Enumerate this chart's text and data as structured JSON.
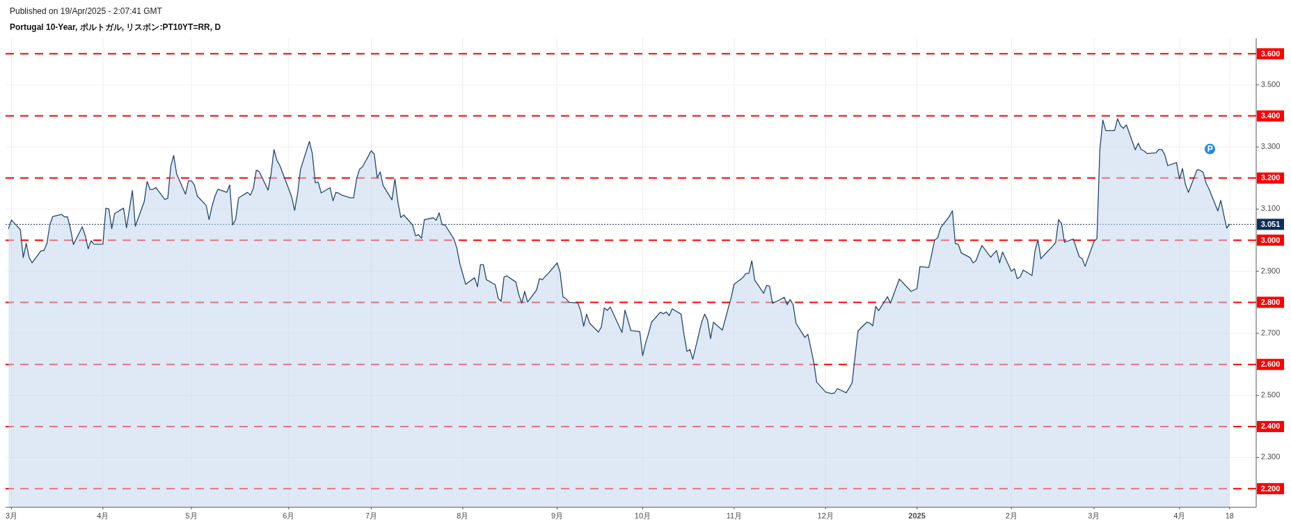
{
  "chart_data": {
    "type": "area",
    "title": "Portugal 10-Year, ポルトガル, リスボン:PT10YT=RR, D",
    "annotations": [
      "Published on 19/Apr/2025 - 2:07:41 GMT"
    ],
    "x": [
      "2024-02-29",
      "2024-03-01",
      "2024-03-04",
      "2024-03-05",
      "2024-03-06",
      "2024-03-07",
      "2024-03-08",
      "2024-03-11",
      "2024-03-12",
      "2024-03-13",
      "2024-03-14",
      "2024-03-15",
      "2024-03-18",
      "2024-03-19",
      "2024-03-20",
      "2024-03-21",
      "2024-03-22",
      "2024-03-25",
      "2024-03-26",
      "2024-03-27",
      "2024-03-28",
      "2024-03-29",
      "2024-04-01",
      "2024-04-02",
      "2024-04-03",
      "2024-04-04",
      "2024-04-05",
      "2024-04-08",
      "2024-04-09",
      "2024-04-10",
      "2024-04-11",
      "2024-04-12",
      "2024-04-15",
      "2024-04-16",
      "2024-04-17",
      "2024-04-18",
      "2024-04-19",
      "2024-04-22",
      "2024-04-23",
      "2024-04-24",
      "2024-04-25",
      "2024-04-26",
      "2024-04-29",
      "2024-04-30",
      "2024-05-01",
      "2024-05-02",
      "2024-05-03",
      "2024-05-06",
      "2024-05-07",
      "2024-05-08",
      "2024-05-09",
      "2024-05-10",
      "2024-05-13",
      "2024-05-14",
      "2024-05-15",
      "2024-05-16",
      "2024-05-17",
      "2024-05-20",
      "2024-05-21",
      "2024-05-22",
      "2024-05-23",
      "2024-05-24",
      "2024-05-27",
      "2024-05-28",
      "2024-05-29",
      "2024-05-30",
      "2024-05-31",
      "2024-06-03",
      "2024-06-04",
      "2024-06-05",
      "2024-06-06",
      "2024-06-07",
      "2024-06-10",
      "2024-06-11",
      "2024-06-12",
      "2024-06-13",
      "2024-06-14",
      "2024-06-17",
      "2024-06-18",
      "2024-06-19",
      "2024-06-20",
      "2024-06-21",
      "2024-06-24",
      "2024-06-25",
      "2024-06-26",
      "2024-06-27",
      "2024-06-28",
      "2024-07-01",
      "2024-07-02",
      "2024-07-03",
      "2024-07-04",
      "2024-07-05",
      "2024-07-08",
      "2024-07-09",
      "2024-07-10",
      "2024-07-11",
      "2024-07-12",
      "2024-07-15",
      "2024-07-16",
      "2024-07-17",
      "2024-07-18",
      "2024-07-19",
      "2024-07-22",
      "2024-07-23",
      "2024-07-24",
      "2024-07-25",
      "2024-07-26",
      "2024-07-29",
      "2024-07-30",
      "2024-07-31",
      "2024-08-01",
      "2024-08-02",
      "2024-08-05",
      "2024-08-06",
      "2024-08-07",
      "2024-08-08",
      "2024-08-09",
      "2024-08-12",
      "2024-08-13",
      "2024-08-14",
      "2024-08-15",
      "2024-08-16",
      "2024-08-19",
      "2024-08-20",
      "2024-08-21",
      "2024-08-22",
      "2024-08-23",
      "2024-08-26",
      "2024-08-27",
      "2024-08-28",
      "2024-08-29",
      "2024-08-30",
      "2024-09-02",
      "2024-09-03",
      "2024-09-04",
      "2024-09-05",
      "2024-09-06",
      "2024-09-09",
      "2024-09-10",
      "2024-09-11",
      "2024-09-12",
      "2024-09-13",
      "2024-09-16",
      "2024-09-17",
      "2024-09-18",
      "2024-09-19",
      "2024-09-20",
      "2024-09-23",
      "2024-09-24",
      "2024-09-25",
      "2024-09-26",
      "2024-09-27",
      "2024-09-30",
      "2024-10-01",
      "2024-10-02",
      "2024-10-03",
      "2024-10-04",
      "2024-10-07",
      "2024-10-08",
      "2024-10-09",
      "2024-10-10",
      "2024-10-11",
      "2024-10-14",
      "2024-10-15",
      "2024-10-16",
      "2024-10-17",
      "2024-10-18",
      "2024-10-21",
      "2024-10-22",
      "2024-10-23",
      "2024-10-24",
      "2024-10-25",
      "2024-10-28",
      "2024-10-29",
      "2024-10-30",
      "2024-10-31",
      "2024-11-01",
      "2024-11-04",
      "2024-11-05",
      "2024-11-06",
      "2024-11-07",
      "2024-11-08",
      "2024-11-11",
      "2024-11-12",
      "2024-11-13",
      "2024-11-14",
      "2024-11-15",
      "2024-11-18",
      "2024-11-19",
      "2024-11-20",
      "2024-11-21",
      "2024-11-22",
      "2024-11-25",
      "2024-11-26",
      "2024-11-27",
      "2024-11-28",
      "2024-11-29",
      "2024-12-02",
      "2024-12-03",
      "2024-12-04",
      "2024-12-05",
      "2024-12-06",
      "2024-12-09",
      "2024-12-10",
      "2024-12-11",
      "2024-12-12",
      "2024-12-13",
      "2024-12-16",
      "2024-12-17",
      "2024-12-18",
      "2024-12-19",
      "2024-12-20",
      "2024-12-23",
      "2024-12-24",
      "2024-12-27",
      "2024-12-30",
      "2024-12-31",
      "2025-01-02",
      "2025-01-03",
      "2025-01-06",
      "2025-01-07",
      "2025-01-08",
      "2025-01-09",
      "2025-01-10",
      "2025-01-13",
      "2025-01-14",
      "2025-01-15",
      "2025-01-16",
      "2025-01-17",
      "2025-01-20",
      "2025-01-21",
      "2025-01-22",
      "2025-01-23",
      "2025-01-24",
      "2025-01-27",
      "2025-01-28",
      "2025-01-29",
      "2025-01-30",
      "2025-01-31",
      "2025-02-03",
      "2025-02-04",
      "2025-02-05",
      "2025-02-06",
      "2025-02-07",
      "2025-02-10",
      "2025-02-11",
      "2025-02-12",
      "2025-02-13",
      "2025-02-14",
      "2025-02-17",
      "2025-02-18",
      "2025-02-19",
      "2025-02-20",
      "2025-02-21",
      "2025-02-24",
      "2025-02-25",
      "2025-02-26",
      "2025-02-27",
      "2025-02-28",
      "2025-03-03",
      "2025-03-04",
      "2025-03-05",
      "2025-03-06",
      "2025-03-07",
      "2025-03-10",
      "2025-03-11",
      "2025-03-12",
      "2025-03-13",
      "2025-03-14",
      "2025-03-17",
      "2025-03-18",
      "2025-03-19",
      "2025-03-20",
      "2025-03-21",
      "2025-03-24",
      "2025-03-25",
      "2025-03-26",
      "2025-03-27",
      "2025-03-28",
      "2025-03-31",
      "2025-04-01",
      "2025-04-02",
      "2025-04-03",
      "2025-04-04",
      "2025-04-07",
      "2025-04-08",
      "2025-04-09",
      "2025-04-10",
      "2025-04-11",
      "2025-04-14",
      "2025-04-15",
      "2025-04-16",
      "2025-04-17",
      "2025-04-18"
    ],
    "series": [
      {
        "color": "#21476f",
        "values": [
          3.037,
          3.065,
          3.034,
          2.944,
          2.99,
          2.944,
          2.927,
          2.966,
          2.966,
          2.989,
          3.049,
          3.076,
          3.083,
          3.075,
          3.075,
          3.037,
          2.986,
          3.043,
          3.015,
          2.972,
          2.998,
          2.987,
          2.987,
          3.103,
          3.101,
          3.037,
          3.086,
          3.103,
          3.04,
          3.1,
          3.16,
          3.045,
          3.124,
          3.189,
          3.163,
          3.164,
          3.169,
          3.131,
          3.135,
          3.237,
          3.273,
          3.213,
          3.148,
          3.191,
          3.191,
          3.178,
          3.142,
          3.112,
          3.066,
          3.109,
          3.142,
          3.164,
          3.154,
          3.178,
          3.049,
          3.067,
          3.136,
          3.154,
          3.145,
          3.167,
          3.225,
          3.221,
          3.161,
          3.213,
          3.292,
          3.257,
          3.24,
          3.165,
          3.139,
          3.096,
          3.15,
          3.228,
          3.318,
          3.279,
          3.185,
          3.187,
          3.152,
          3.169,
          3.127,
          3.154,
          3.151,
          3.145,
          3.136,
          3.136,
          3.197,
          3.228,
          3.236,
          3.288,
          3.277,
          3.201,
          3.22,
          3.176,
          3.13,
          3.197,
          3.124,
          3.073,
          3.081,
          3.049,
          3.014,
          3.018,
          3.006,
          3.066,
          3.072,
          3.064,
          3.088,
          3.05,
          3.049,
          3.004,
          2.974,
          2.925,
          2.891,
          2.858,
          2.879,
          2.85,
          2.921,
          2.921,
          2.873,
          2.857,
          2.813,
          2.803,
          2.882,
          2.885,
          2.865,
          2.825,
          2.797,
          2.835,
          2.801,
          2.839,
          2.876,
          2.873,
          2.884,
          2.893,
          2.927,
          2.897,
          2.817,
          2.812,
          2.8,
          2.798,
          2.772,
          2.723,
          2.762,
          2.733,
          2.704,
          2.721,
          2.782,
          2.774,
          2.785,
          2.723,
          2.703,
          2.775,
          2.742,
          2.709,
          2.706,
          2.628,
          2.669,
          2.7,
          2.736,
          2.768,
          2.763,
          2.769,
          2.757,
          2.779,
          2.762,
          2.697,
          2.642,
          2.648,
          2.617,
          2.736,
          2.762,
          2.743,
          2.683,
          2.736,
          2.71,
          2.745,
          2.781,
          2.815,
          2.858,
          2.88,
          2.893,
          2.893,
          2.934,
          2.871,
          2.829,
          2.854,
          2.852,
          2.797,
          2.801,
          2.816,
          2.792,
          2.809,
          2.792,
          2.732,
          2.687,
          2.697,
          2.653,
          2.607,
          2.543,
          2.511,
          2.509,
          2.506,
          2.508,
          2.522,
          2.509,
          2.524,
          2.541,
          2.625,
          2.708,
          2.736,
          2.733,
          2.724,
          2.787,
          2.773,
          2.818,
          2.797,
          2.875,
          2.845,
          2.835,
          2.844,
          2.915,
          2.912,
          2.955,
          3.001,
          3.007,
          3.04,
          3.077,
          3.095,
          2.989,
          2.987,
          2.959,
          2.944,
          2.927,
          2.934,
          2.959,
          2.983,
          2.945,
          2.957,
          2.966,
          2.927,
          2.962,
          2.9,
          2.908,
          2.876,
          2.882,
          2.904,
          2.886,
          2.965,
          3.002,
          2.94,
          2.951,
          2.981,
          2.992,
          3.066,
          3.054,
          2.993,
          3.004,
          2.975,
          2.947,
          2.94,
          2.916,
          2.996,
          3.005,
          3.292,
          3.387,
          3.353,
          3.353,
          3.391,
          3.369,
          3.36,
          3.371,
          3.291,
          3.312,
          3.292,
          3.287,
          3.279,
          3.281,
          3.292,
          3.292,
          3.275,
          3.24,
          3.25,
          3.197,
          3.231,
          3.18,
          3.154,
          3.227,
          3.225,
          3.219,
          3.184,
          3.165,
          3.094,
          3.128,
          3.082,
          3.039,
          3.051
        ]
      }
    ],
    "xlim": [
      "2024-02-28",
      "2025-04-27"
    ],
    "ylim": [
      2.14,
      3.65
    ],
    "xticks": [
      {
        "value": "2024-03-01",
        "label": "3月"
      },
      {
        "value": "2024-04-01",
        "label": "4月"
      },
      {
        "value": "2024-05-01",
        "label": "5月"
      },
      {
        "value": "2024-06-03",
        "label": "6月"
      },
      {
        "value": "2024-07-01",
        "label": "7月"
      },
      {
        "value": "2024-08-01",
        "label": "8月"
      },
      {
        "value": "2024-09-02",
        "label": "9月"
      },
      {
        "value": "2024-10-01",
        "label": "10月"
      },
      {
        "value": "2024-11-01",
        "label": "11月"
      },
      {
        "value": "2024-12-02",
        "label": "12月"
      },
      {
        "value": "2025-01-02",
        "label": "2025"
      },
      {
        "value": "2025-02-03",
        "label": "2月"
      },
      {
        "value": "2025-03-03",
        "label": "3月"
      },
      {
        "value": "2025-04-01",
        "label": "4月"
      },
      {
        "value": "2025-04-18",
        "label": "18"
      }
    ],
    "yticks": [
      {
        "value": 2.3,
        "label": "2.300"
      },
      {
        "value": 2.5,
        "label": "2.500"
      },
      {
        "value": 2.7,
        "label": "2.700"
      },
      {
        "value": 2.9,
        "label": "2.900"
      },
      {
        "value": 3.1,
        "label": "3.100"
      },
      {
        "value": 3.3,
        "label": "3.300"
      },
      {
        "value": 3.5,
        "label": "3.500"
      }
    ],
    "grid": true,
    "ref_lines": [
      {
        "axis": "y",
        "value": 3.6,
        "label": "3.600",
        "color": "#ff0000",
        "line_style": "dashed"
      },
      {
        "axis": "y",
        "value": 3.4,
        "label": "3.400",
        "color": "#ff0000",
        "line_style": "dashed"
      },
      {
        "axis": "y",
        "value": 3.2,
        "label": "3.200",
        "color": "#ff0000",
        "line_style": "dashed"
      },
      {
        "axis": "y",
        "value": 3.0,
        "label": "3.000",
        "color": "#ff0000",
        "line_style": "dashed"
      },
      {
        "axis": "y",
        "value": 2.8,
        "label": "2.800",
        "color": "#ff0000",
        "line_style": "dashed"
      },
      {
        "axis": "y",
        "value": 2.6,
        "label": "2.600",
        "color": "#ff0000",
        "line_style": "dashed"
      },
      {
        "axis": "y",
        "value": 2.4,
        "label": "2.400",
        "color": "#ff0000",
        "line_style": "dashed"
      },
      {
        "axis": "y",
        "value": 2.2,
        "label": "2.200",
        "color": "#ff0000",
        "line_style": "dashed"
      },
      {
        "axis": "y",
        "value": 3.051,
        "label": "3.051",
        "color": "#0c2f57",
        "line_style": "dotted"
      }
    ]
  }
}
